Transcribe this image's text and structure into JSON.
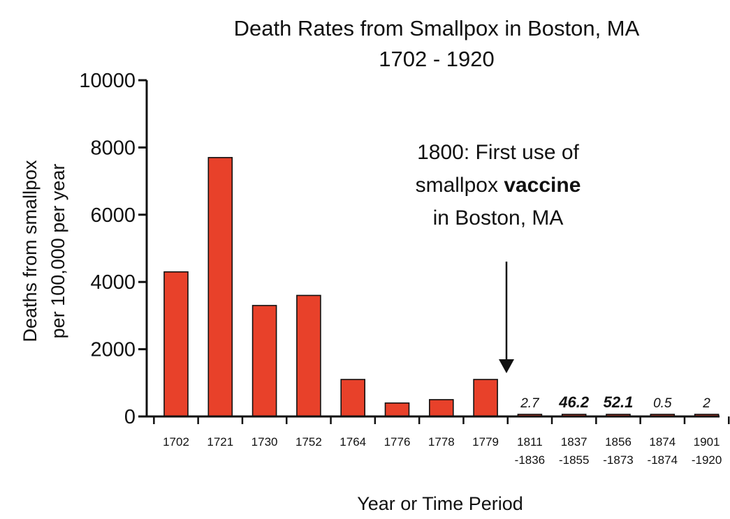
{
  "chart_data": {
    "type": "bar",
    "title": [
      "Death Rates from Smallpox in Boston, MA",
      "1702 - 1920"
    ],
    "xlabel": "Year or Time Period",
    "ylabel": [
      "Deaths from smallpox",
      "per 100,000 per year"
    ],
    "ylim": [
      0,
      10000
    ],
    "yticks": [
      "0",
      "2000",
      "4000",
      "6000",
      "8000",
      "10000"
    ],
    "grid": false,
    "bar_color": "#e8412a",
    "categories": [
      [
        "1702"
      ],
      [
        "1721"
      ],
      [
        "1730"
      ],
      [
        "1752"
      ],
      [
        "1764"
      ],
      [
        "1776"
      ],
      [
        "1778"
      ],
      [
        "1779"
      ],
      [
        "1811",
        "-1836"
      ],
      [
        "1837",
        "-1855"
      ],
      [
        "1856",
        "-1873"
      ],
      [
        "1874",
        "-1874"
      ],
      [
        "1901",
        "-1920"
      ]
    ],
    "values": [
      4300,
      7700,
      3300,
      3600,
      1100,
      400,
      500,
      1100,
      2.7,
      46.2,
      52.1,
      0.5,
      2
    ],
    "data_labels": [
      {
        "index": 8,
        "text": "2.7",
        "bold": false
      },
      {
        "index": 9,
        "text": "46.2",
        "bold": true
      },
      {
        "index": 10,
        "text": "52.1",
        "bold": true
      },
      {
        "index": 11,
        "text": "0.5",
        "bold": false
      },
      {
        "index": 12,
        "text": "2",
        "bold": false
      }
    ],
    "annotation": {
      "line1": "1800:  First use of",
      "line2_prefix": "smallpox ",
      "line2_bold": "vaccine",
      "line3": "in Boston, MA"
    }
  }
}
